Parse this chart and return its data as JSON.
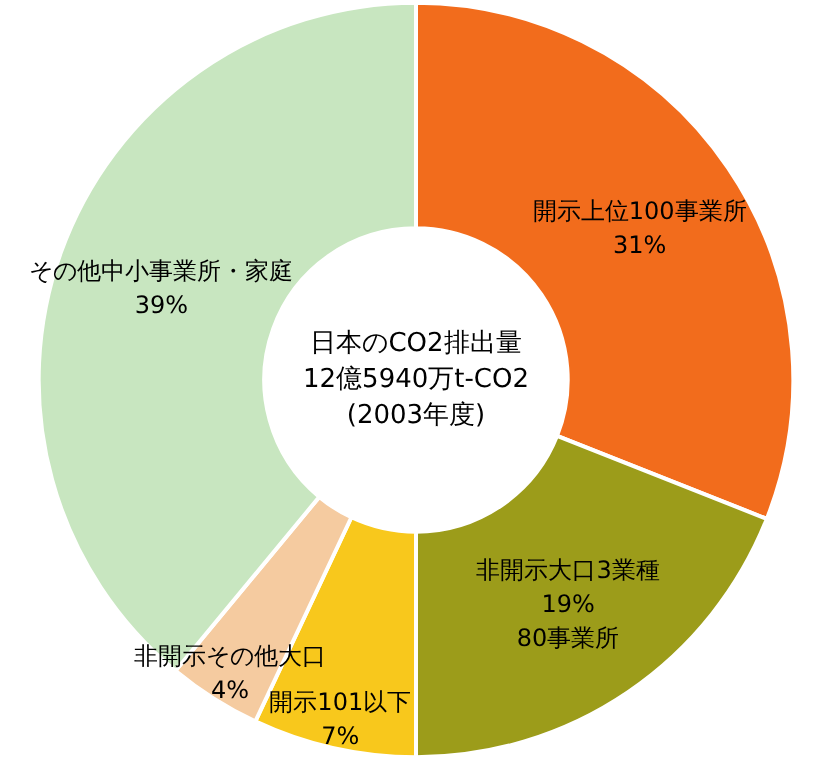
{
  "chart_data": {
    "type": "donut",
    "title": "日本のCO2排出量",
    "subtitle": "12億5940万t-CO2",
    "annotations": [
      "(2003年度)"
    ],
    "categories": [
      "開示上位100事業所",
      "非開示大口3業種",
      "開示101以下",
      "非開示その他大口",
      "その他中小事業所・家庭"
    ],
    "values": [
      31,
      19,
      7,
      4,
      39
    ],
    "value_labels": [
      "31%",
      "19%\n80事業所",
      "7%",
      "4%",
      "39%"
    ],
    "colors": [
      "#f26c1c",
      "#9c9c1a",
      "#f8c81c",
      "#f5cba0",
      "#c8e6c0"
    ],
    "legend": false
  }
}
